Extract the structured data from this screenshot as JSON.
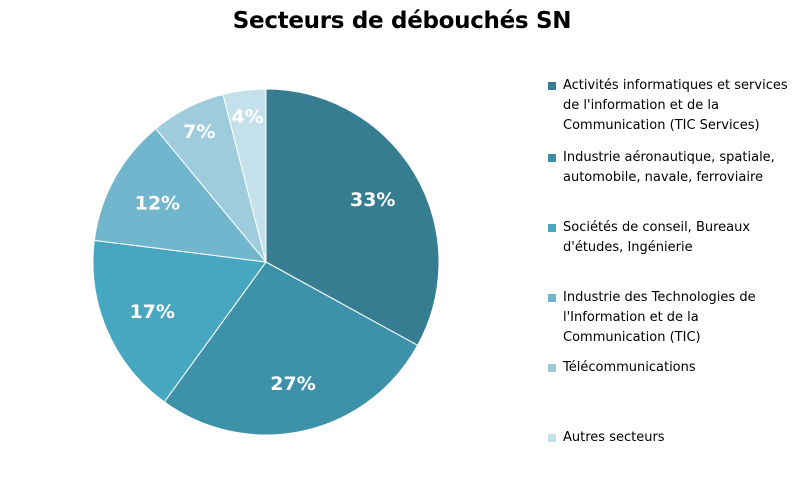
{
  "chart_data": {
    "type": "pie",
    "title": "Secteurs de débouchés SN",
    "legend_position": "right",
    "slices": [
      {
        "label": "Activités informatiques et services de l'information et de la Communication (TIC Services)",
        "value": 33,
        "display": "33%",
        "color": "#367D92"
      },
      {
        "label": "Industrie aéronautique, spatiale, automobile, navale, ferroviaire",
        "value": 27,
        "display": "27%",
        "color": "#3D92AA"
      },
      {
        "label": "Sociétés de conseil, Bureaux d'études, Ingénierie",
        "value": 17,
        "display": "17%",
        "color": "#47A7C0"
      },
      {
        "label": "Industrie des Technologies de l'Information et de la Communication (TIC)",
        "value": 12,
        "display": "12%",
        "color": "#71B6CD"
      },
      {
        "label": "Télécommunications",
        "value": 7,
        "display": "7%",
        "color": "#9FCCDD"
      },
      {
        "label": "Autres secteurs",
        "value": 4,
        "display": "4%",
        "color": "#C4E0EA"
      }
    ]
  }
}
